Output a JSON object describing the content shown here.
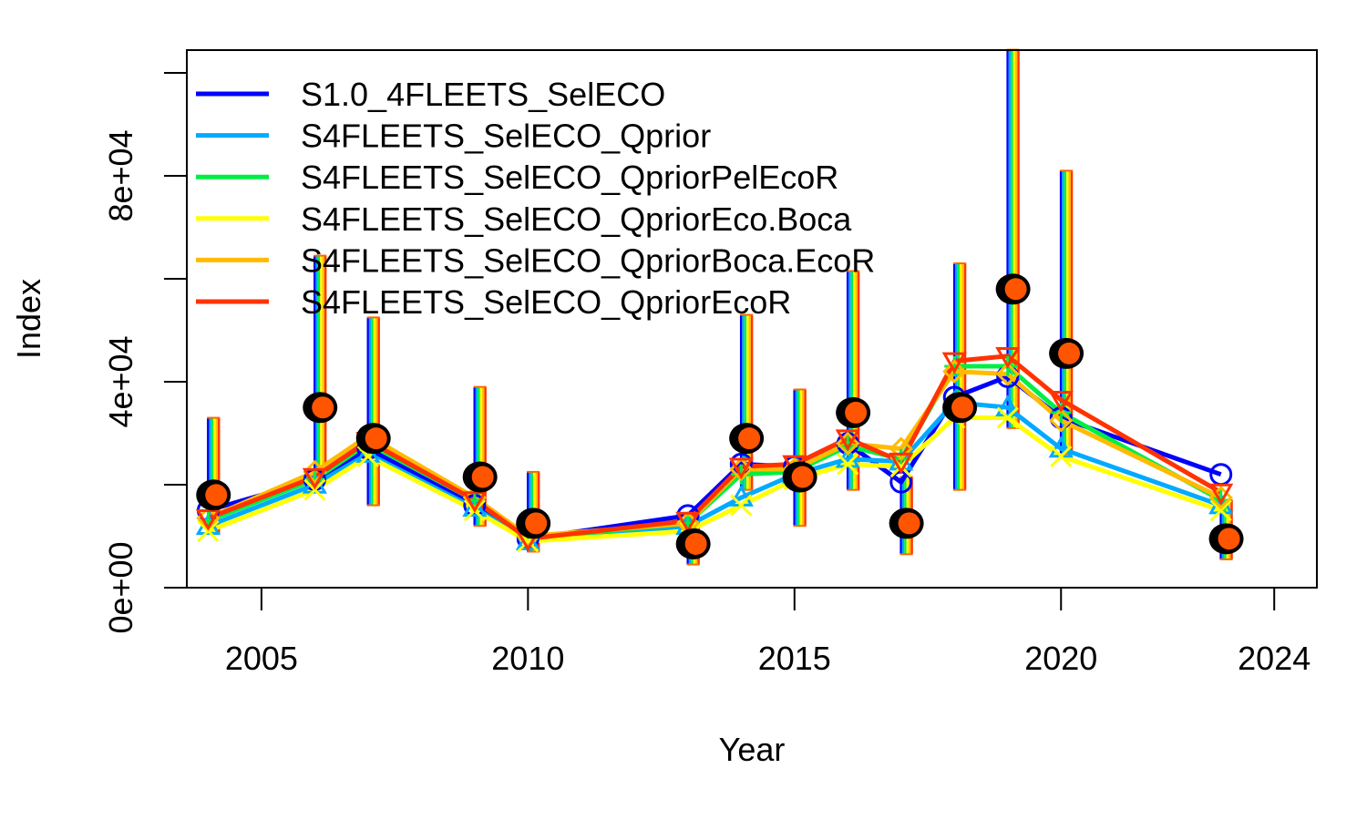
{
  "chart_data": {
    "type": "line",
    "title": "",
    "xlabel": "Year",
    "ylabel": "Index",
    "xlim": [
      2003.6,
      2024.8
    ],
    "ylim": [
      0,
      100000
    ],
    "x_ticks": [
      2005,
      2010,
      2015,
      2020,
      2024
    ],
    "x_tick_labels": [
      "2005",
      "2010",
      "2015",
      "2020",
      "2024"
    ],
    "y_ticks": [
      0,
      20000,
      40000,
      60000,
      80000,
      100000
    ],
    "y_tick_labels": [
      "0e+00",
      "4e+04",
      "8e+04"
    ],
    "y_labeled_ticks": [
      0,
      40000,
      80000
    ],
    "legend_position": "top-left",
    "legend": [
      "S1.0_4FLEETS_SelECO",
      "S4FLEETS_SelECO_Qprior",
      "S4FLEETS_SelECO_QpriorPelEcoR",
      "S4FLEETS_SelECO_QpriorEco.Boca",
      "S4FLEETS_SelECO_QpriorBoca.EcoR",
      "S4FLEETS_SelECO_QpriorEcoR"
    ],
    "x": [
      2004,
      2006,
      2007,
      2009,
      2010,
      2013,
      2014,
      2015,
      2016,
      2017,
      2018,
      2019,
      2020,
      2023
    ],
    "series": [
      {
        "name": "S1.0_4FLEETS_SelECO",
        "color": "#0000ff",
        "marker": "circle",
        "values": [
          15000,
          21000,
          27000,
          16000,
          9500,
          14000,
          24000,
          23500,
          28000,
          20500,
          37000,
          41000,
          33000,
          22000
        ]
      },
      {
        "name": "S4FLEETS_SelECO_Qprior",
        "color": "#00aaff",
        "marker": "triangle-up",
        "values": [
          12000,
          20000,
          26000,
          15500,
          9000,
          12000,
          17500,
          22000,
          25000,
          24500,
          36000,
          35000,
          27000,
          16000
        ]
      },
      {
        "name": "S4FLEETS_SelECO_QpriorPelEcoR",
        "color": "#00ee44",
        "marker": "plus",
        "values": [
          13000,
          21000,
          28000,
          17000,
          9500,
          12500,
          22000,
          22500,
          27500,
          25000,
          43000,
          43000,
          34000,
          17000
        ]
      },
      {
        "name": "S4FLEETS_SelECO_QpriorEco.Boca",
        "color": "#ffff00",
        "marker": "cross",
        "values": [
          11000,
          19000,
          25500,
          15000,
          9000,
          11000,
          16000,
          21000,
          24000,
          23500,
          33000,
          33000,
          25500,
          15000
        ]
      },
      {
        "name": "S4FLEETS_SelECO_QpriorBoca.EcoR",
        "color": "#ffbb00",
        "marker": "diamond",
        "values": [
          13500,
          22500,
          29500,
          17500,
          10000,
          12500,
          23000,
          23000,
          28000,
          27000,
          42000,
          41500,
          32500,
          17500
        ]
      },
      {
        "name": "S4FLEETS_SelECO_QpriorEcoR",
        "color": "#ff3300",
        "marker": "triangle-down",
        "values": [
          13500,
          21500,
          28500,
          17000,
          9500,
          13000,
          23500,
          24000,
          29000,
          24500,
          44000,
          45000,
          36500,
          18500
        ]
      }
    ],
    "observations": {
      "x": [
        2004.1,
        2006.1,
        2007.1,
        2009.1,
        2010.1,
        2013.1,
        2014.1,
        2015.1,
        2016.1,
        2017.1,
        2018.1,
        2019.1,
        2020.1,
        2023.1
      ],
      "values": [
        18000,
        35000,
        29000,
        21500,
        12500,
        8500,
        29000,
        21500,
        34000,
        12500,
        35000,
        58000,
        45500,
        9500
      ],
      "lower": [
        10500,
        20500,
        16000,
        12000,
        7000,
        4500,
        19000,
        12000,
        19000,
        6500,
        19000,
        31000,
        26000,
        5500
      ],
      "upper": [
        33000,
        64500,
        52500,
        39000,
        22500,
        14000,
        53000,
        38500,
        61500,
        21500,
        63000,
        104500,
        81000,
        17000
      ]
    },
    "colors": {
      "observation_fill": "#ff5500",
      "observation_edge": "#000000",
      "error_bar_stripes": [
        "#0000ff",
        "#00aaff",
        "#00ee44",
        "#ffff00",
        "#ffbb00",
        "#ff3300"
      ]
    }
  }
}
